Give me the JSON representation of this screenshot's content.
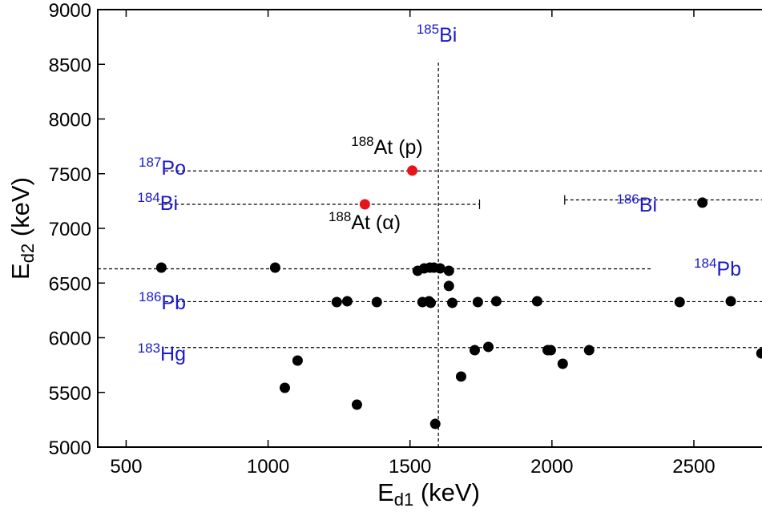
{
  "chart_data": {
    "type": "scatter",
    "x_label": {
      "main": "E",
      "sub": "d1",
      "unit": "(keV)"
    },
    "y_label": {
      "main": "E",
      "sub": "d2",
      "unit": "(keV)"
    },
    "xlim": [
      400,
      2740
    ],
    "ylim": [
      5000,
      9000
    ],
    "xticks": [
      500,
      1000,
      1500,
      2000,
      2500
    ],
    "yticks": [
      5000,
      5500,
      6000,
      6500,
      7000,
      7500,
      8000,
      8500,
      9000
    ],
    "series": [
      {
        "color": "#000000",
        "x": [
          624,
          1025,
          1059,
          1104,
          1313,
          1242,
          1279,
          1383,
          1527,
          1550,
          1570,
          1584,
          1606,
          1637,
          1637,
          1544,
          1567,
          1573,
          1649,
          1739,
          1804,
          1948,
          2450,
          2630,
          1589,
          1680,
          1728,
          1776,
          1985,
          1996,
          2038,
          2131,
          2530,
          2738
        ],
        "values": [
          6641,
          6641,
          5542,
          5791,
          5388,
          6326,
          6333,
          6326,
          6612,
          6634,
          6641,
          6641,
          6634,
          6612,
          6473,
          6326,
          6333,
          6319,
          6319,
          6326,
          6333,
          6333,
          6326,
          6333,
          5212,
          5645,
          5886,
          5916,
          5886,
          5886,
          5762,
          5886,
          7235,
          5857
        ]
      },
      {
        "color": "#e8141b",
        "x": [
          1508,
          1341
        ],
        "values": [
          7528,
          7220
        ]
      }
    ],
    "reference_lines": [
      {
        "mass": "185",
        "label": "Bi",
        "orientation": "vertical",
        "position": 1600,
        "range": [
          5000,
          8540
        ]
      },
      {
        "mass": "187",
        "label": "Po",
        "orientation": "horizontal",
        "position": 7525,
        "range": [
          637,
          2740
        ]
      },
      {
        "mass": "184",
        "label": "Bi",
        "orientation": "horizontal",
        "position": 7220,
        "range": [
          614,
          1745
        ]
      },
      {
        "mass": "186",
        "label": "Bi",
        "orientation": "horizontal",
        "position": 7260,
        "range": [
          2045,
          2740
        ]
      },
      {
        "mass": "184",
        "label": "Pb",
        "orientation": "horizontal",
        "position": 6630,
        "range": [
          400,
          2350
        ]
      },
      {
        "mass": "186",
        "label": "Pb",
        "orientation": "horizontal",
        "position": 6330,
        "range": [
          637,
          2740
        ]
      },
      {
        "mass": "183",
        "label": "Hg",
        "orientation": "horizontal",
        "position": 5910,
        "range": [
          637,
          2740
        ]
      }
    ],
    "point_labels": [
      {
        "mass": "188",
        "label": "At (p)"
      },
      {
        "mass": "188",
        "label": "At (α)"
      }
    ]
  }
}
